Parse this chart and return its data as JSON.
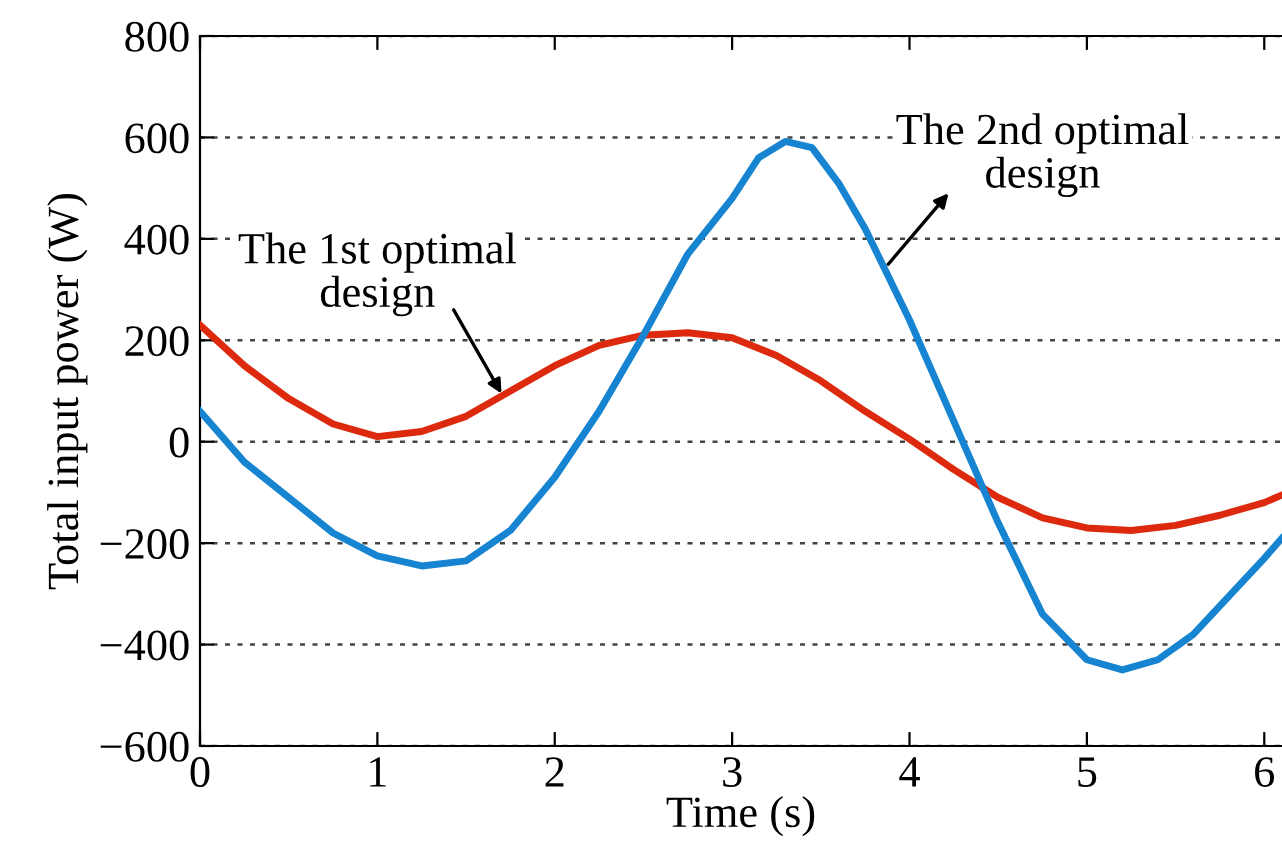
{
  "chart_data": {
    "type": "line",
    "xlabel": "Time (s)",
    "ylabel": "Total input power (W)",
    "xlim": [
      0,
      6.1
    ],
    "xticks": [
      0,
      1,
      2,
      3,
      4,
      5,
      6
    ],
    "ylim": [
      -600,
      800
    ],
    "yticks": [
      -600,
      -400,
      -200,
      0,
      200,
      400,
      600,
      800
    ],
    "grid": "y",
    "line_style": "solid",
    "marker": "none",
    "series": [
      {
        "color": "#dd2a0f",
        "x": [
          0,
          0.25,
          0.5,
          0.75,
          1,
          1.25,
          1.5,
          1.75,
          2,
          2.25,
          2.5,
          2.75,
          3,
          3.25,
          3.5,
          3.75,
          4,
          4.25,
          4.5,
          4.75,
          5,
          5.25,
          5.5,
          5.75,
          6,
          6.1
        ],
        "values": [
          230,
          150,
          85,
          35,
          10,
          20,
          50,
          100,
          150,
          190,
          210,
          215,
          205,
          170,
          120,
          60,
          5,
          -55,
          -110,
          -150,
          -170,
          -175,
          -165,
          -145,
          -120,
          -105
        ]
      },
      {
        "color": "#1684d0",
        "x": [
          0,
          0.25,
          0.5,
          0.75,
          1,
          1.25,
          1.5,
          1.75,
          2,
          2.25,
          2.5,
          2.75,
          3,
          3.15,
          3.3,
          3.45,
          3.6,
          3.75,
          4,
          4.25,
          4.5,
          4.75,
          5,
          5.2,
          5.4,
          5.6,
          5.8,
          6,
          6.1
        ],
        "values": [
          60,
          -40,
          -110,
          -180,
          -225,
          -245,
          -235,
          -175,
          -70,
          60,
          210,
          370,
          480,
          560,
          592,
          580,
          510,
          420,
          240,
          40,
          -160,
          -340,
          -430,
          -450,
          -430,
          -380,
          -305,
          -230,
          -190
        ]
      }
    ],
    "annotations": [
      {
        "text": "The 1st optimal\ndesign",
        "x": 1.7,
        "y": 95
      },
      {
        "text": "The 2nd optimal\ndesign",
        "x": 3.88,
        "y": 350
      }
    ]
  }
}
